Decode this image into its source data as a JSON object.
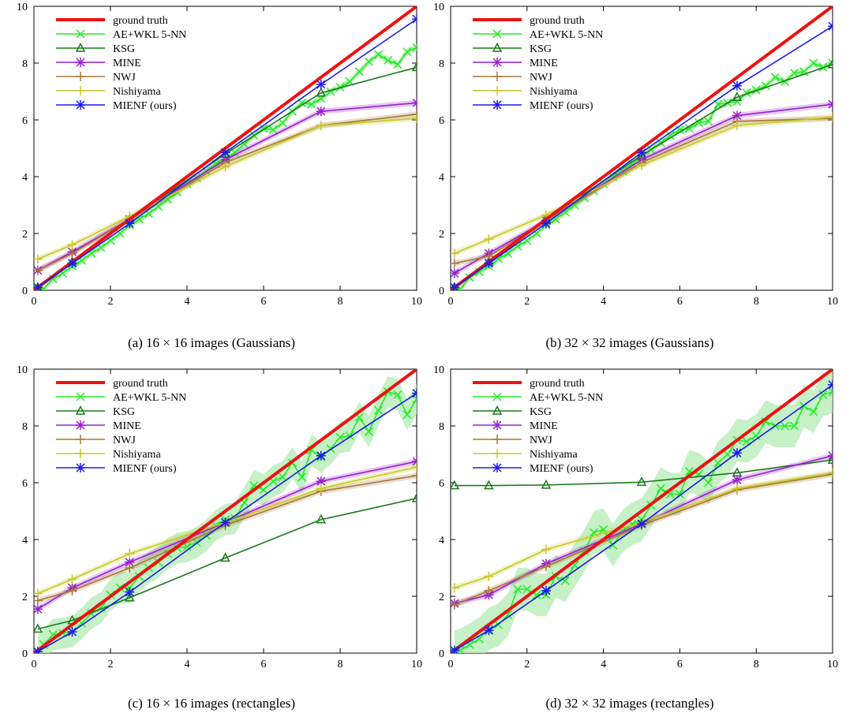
{
  "figure": {
    "legend_entries": [
      {
        "key": "gt",
        "label": "ground truth",
        "color": "#ee1111",
        "marker": "none"
      },
      {
        "key": "ae",
        "label": "AE+WKL 5-NN",
        "color": "#22ee22",
        "marker": "x"
      },
      {
        "key": "ksg",
        "label": "KSG",
        "color": "#1b7a1b",
        "marker": "triangle"
      },
      {
        "key": "mine",
        "label": "MINE",
        "color": "#9a1fd0",
        "marker": "star"
      },
      {
        "key": "nwj",
        "label": "NWJ",
        "color": "#a8783a",
        "marker": "plus"
      },
      {
        "key": "nishi",
        "label": "Nishiyama",
        "color": "#c8c826",
        "marker": "plus"
      },
      {
        "key": "mienf",
        "label": "MIENF (ours)",
        "color": "#1b1bee",
        "marker": "star"
      }
    ],
    "band_color": "#b3ebb3"
  },
  "chart_data": [
    {
      "type": "line",
      "title": "",
      "caption": "(a) 16 × 16 images (Gaussians)",
      "xlim": [
        0,
        10
      ],
      "ylim": [
        0,
        10
      ],
      "xticks": [
        0,
        2,
        4,
        6,
        8,
        10
      ],
      "yticks": [
        0,
        2,
        4,
        6,
        8,
        10
      ],
      "grid": false,
      "legend_position": "top-left",
      "series": [
        {
          "key": "gt",
          "name": "ground truth",
          "x": [
            0,
            10
          ],
          "y": [
            0,
            10
          ]
        },
        {
          "key": "ae",
          "name": "AE+WKL 5-NN",
          "x": [
            0.1,
            0.25,
            0.5,
            0.75,
            1,
            1.25,
            1.5,
            1.75,
            2,
            2.25,
            2.5,
            2.75,
            3,
            3.25,
            3.5,
            3.75,
            4,
            4.25,
            4.5,
            4.75,
            5,
            5.25,
            5.5,
            5.75,
            6,
            6.25,
            6.5,
            6.75,
            7,
            7.25,
            7.5,
            7.75,
            8,
            8.25,
            8.5,
            8.75,
            9,
            9.25,
            9.5,
            9.75,
            10
          ],
          "y": [
            0.05,
            0.05,
            0.4,
            0.6,
            0.85,
            1.05,
            1.3,
            1.5,
            1.75,
            2.0,
            2.3,
            2.5,
            2.7,
            2.95,
            3.2,
            3.45,
            3.75,
            3.95,
            4.2,
            4.45,
            4.65,
            4.85,
            5.15,
            5.45,
            5.7,
            5.65,
            5.9,
            6.3,
            6.6,
            6.55,
            6.75,
            7.0,
            7.15,
            7.35,
            7.7,
            8.05,
            8.3,
            8.1,
            7.95,
            8.4,
            8.55
          ],
          "band": 0.12
        },
        {
          "key": "ksg",
          "name": "KSG",
          "x": [
            0.1,
            1,
            2.5,
            5,
            7.5,
            10
          ],
          "y": [
            0.1,
            1.0,
            2.5,
            4.8,
            6.95,
            7.85
          ]
        },
        {
          "key": "mine",
          "name": "MINE",
          "x": [
            0.1,
            1,
            2.5,
            5,
            7.5,
            10
          ],
          "y": [
            0.7,
            1.35,
            2.5,
            4.6,
            6.3,
            6.6
          ],
          "band": 0.1
        },
        {
          "key": "nwj",
          "name": "NWJ",
          "x": [
            0.1,
            1,
            2.5,
            5,
            7.5,
            10
          ],
          "y": [
            0.7,
            1.3,
            2.5,
            4.5,
            5.8,
            6.2
          ],
          "band": 0.1
        },
        {
          "key": "nishi",
          "name": "Nishiyama",
          "x": [
            0.1,
            1,
            2.5,
            5,
            7.5,
            10
          ],
          "y": [
            1.1,
            1.6,
            2.6,
            4.35,
            5.8,
            6.05
          ],
          "band": 0.1
        },
        {
          "key": "mienf",
          "name": "MIENF (ours)",
          "x": [
            0.1,
            1,
            2.5,
            5,
            7.5,
            10
          ],
          "y": [
            0.1,
            0.95,
            2.35,
            4.85,
            7.25,
            9.55
          ]
        }
      ]
    },
    {
      "type": "line",
      "title": "",
      "caption": "(b) 32 × 32 images (Gaussians)",
      "xlim": [
        0,
        10
      ],
      "ylim": [
        0,
        10
      ],
      "xticks": [
        0,
        2,
        4,
        6,
        8,
        10
      ],
      "yticks": [
        0,
        2,
        4,
        6,
        8,
        10
      ],
      "grid": false,
      "legend_position": "top-left",
      "series": [
        {
          "key": "gt",
          "name": "ground truth",
          "x": [
            0,
            10
          ],
          "y": [
            0,
            10
          ]
        },
        {
          "key": "ae",
          "name": "AE+WKL 5-NN",
          "x": [
            0.1,
            0.25,
            0.5,
            0.75,
            1,
            1.25,
            1.5,
            1.75,
            2,
            2.25,
            2.5,
            2.75,
            3,
            3.25,
            3.5,
            3.75,
            4,
            4.25,
            4.5,
            4.75,
            5,
            5.25,
            5.5,
            5.75,
            6,
            6.25,
            6.5,
            6.75,
            7,
            7.25,
            7.5,
            7.75,
            8,
            8.25,
            8.5,
            8.75,
            9,
            9.25,
            9.5,
            9.75,
            10
          ],
          "y": [
            0.05,
            0.05,
            0.45,
            0.65,
            0.85,
            1.1,
            1.3,
            1.55,
            1.75,
            2.0,
            2.3,
            2.5,
            2.75,
            3.0,
            3.25,
            3.5,
            3.75,
            4.0,
            4.2,
            4.45,
            4.7,
            4.95,
            5.2,
            5.45,
            5.65,
            5.7,
            5.9,
            5.95,
            6.55,
            6.6,
            6.65,
            6.95,
            7.05,
            7.2,
            7.5,
            7.35,
            7.65,
            7.7,
            8.0,
            7.85,
            8.0
          ],
          "band": 0.12
        },
        {
          "key": "ksg",
          "name": "KSG",
          "x": [
            0.1,
            1,
            2.5,
            5,
            7.5,
            10
          ],
          "y": [
            0.1,
            1.0,
            2.5,
            4.75,
            6.8,
            7.95
          ]
        },
        {
          "key": "mine",
          "name": "MINE",
          "x": [
            0.1,
            1,
            2.5,
            5,
            7.5,
            10
          ],
          "y": [
            0.6,
            1.3,
            2.45,
            4.6,
            6.15,
            6.55
          ],
          "band": 0.1
        },
        {
          "key": "nwj",
          "name": "NWJ",
          "x": [
            0.1,
            1,
            2.5,
            5,
            7.5,
            10
          ],
          "y": [
            0.95,
            1.2,
            2.45,
            4.5,
            5.95,
            6.05
          ],
          "band": 0.1
        },
        {
          "key": "nishi",
          "name": "Nishiyama",
          "x": [
            0.1,
            1,
            2.5,
            5,
            7.5,
            10
          ],
          "y": [
            1.3,
            1.8,
            2.65,
            4.4,
            5.8,
            6.1
          ],
          "band": 0.1
        },
        {
          "key": "mienf",
          "name": "MIENF (ours)",
          "x": [
            0.1,
            1,
            2.5,
            5,
            7.5,
            10
          ],
          "y": [
            0.1,
            0.95,
            2.35,
            4.85,
            7.2,
            9.3
          ]
        }
      ]
    },
    {
      "type": "line",
      "title": "",
      "caption": "(c) 16 × 16 images (rectangles)",
      "xlim": [
        0,
        10
      ],
      "ylim": [
        0,
        10
      ],
      "xticks": [
        0,
        2,
        4,
        6,
        8,
        10
      ],
      "yticks": [
        0,
        2,
        4,
        6,
        8,
        10
      ],
      "grid": false,
      "legend_position": "top-left",
      "series": [
        {
          "key": "gt",
          "name": "ground truth",
          "x": [
            0,
            10
          ],
          "y": [
            0,
            10
          ]
        },
        {
          "key": "ae",
          "name": "AE+WKL 5-NN",
          "x": [
            0.1,
            0.25,
            0.5,
            0.75,
            1,
            1.25,
            1.5,
            1.75,
            2,
            2.25,
            2.5,
            2.75,
            3,
            3.25,
            3.5,
            3.75,
            4,
            4.25,
            4.5,
            4.75,
            5,
            5.25,
            5.5,
            5.75,
            6,
            6.25,
            6.5,
            6.75,
            7,
            7.25,
            7.5,
            7.75,
            8,
            8.25,
            8.5,
            8.75,
            9,
            9.25,
            9.5,
            9.75,
            10
          ],
          "y": [
            0.05,
            0.3,
            0.65,
            0.7,
            0.75,
            1.05,
            1.4,
            1.6,
            2.05,
            2.3,
            2.3,
            2.7,
            3.0,
            3.2,
            3.5,
            3.7,
            3.75,
            3.9,
            4.15,
            4.5,
            4.7,
            4.75,
            5.3,
            5.9,
            5.75,
            6.05,
            6.2,
            6.7,
            6.2,
            7.15,
            6.9,
            7.2,
            7.6,
            7.65,
            8.3,
            7.8,
            8.55,
            9.2,
            9.1,
            8.4,
            8.95
          ],
          "band": 0.55
        },
        {
          "key": "ksg",
          "name": "KSG",
          "x": [
            0.1,
            1,
            2.5,
            5,
            7.5,
            10
          ],
          "y": [
            0.85,
            1.15,
            1.95,
            3.35,
            4.7,
            5.45
          ]
        },
        {
          "key": "mine",
          "name": "MINE",
          "x": [
            0.1,
            1,
            2.5,
            5,
            7.5,
            10
          ],
          "y": [
            1.55,
            2.3,
            3.2,
            4.6,
            6.05,
            6.75
          ],
          "band": 0.1
        },
        {
          "key": "nwj",
          "name": "NWJ",
          "x": [
            0.1,
            1,
            2.5,
            5,
            7.5,
            10
          ],
          "y": [
            1.85,
            2.2,
            3.0,
            4.5,
            5.7,
            6.25
          ],
          "band": 0.1
        },
        {
          "key": "nishi",
          "name": "Nishiyama",
          "x": [
            0.1,
            1,
            2.5,
            5,
            7.5,
            10
          ],
          "y": [
            2.1,
            2.6,
            3.5,
            4.6,
            5.8,
            6.55
          ],
          "band": 0.1
        },
        {
          "key": "mienf",
          "name": "MIENF (ours)",
          "x": [
            0.1,
            1,
            2.5,
            5,
            7.5,
            10
          ],
          "y": [
            0.05,
            0.75,
            2.15,
            4.6,
            6.95,
            9.15
          ]
        }
      ]
    },
    {
      "type": "line",
      "title": "",
      "caption": "(d) 32 × 32 images (rectangles)",
      "xlim": [
        0,
        10
      ],
      "ylim": [
        0,
        10
      ],
      "xticks": [
        0,
        2,
        4,
        6,
        8,
        10
      ],
      "yticks": [
        0,
        2,
        4,
        6,
        8,
        10
      ],
      "grid": false,
      "legend_position": "top-left",
      "series": [
        {
          "key": "gt",
          "name": "ground truth",
          "x": [
            0,
            10
          ],
          "y": [
            0,
            10
          ]
        },
        {
          "key": "ae",
          "name": "AE+WKL 5-NN",
          "x": [
            0.1,
            0.25,
            0.5,
            0.75,
            1,
            1.25,
            1.5,
            1.75,
            2,
            2.25,
            2.5,
            2.75,
            3,
            3.25,
            3.5,
            3.75,
            4,
            4.25,
            4.5,
            4.75,
            5,
            5.25,
            5.5,
            5.75,
            6,
            6.25,
            6.5,
            6.75,
            7,
            7.25,
            7.5,
            7.75,
            8,
            8.25,
            8.5,
            8.75,
            9,
            9.25,
            9.5,
            9.75,
            10
          ],
          "y": [
            0.05,
            0.1,
            0.3,
            0.5,
            0.85,
            1.0,
            1.35,
            2.25,
            2.25,
            2.05,
            2.05,
            2.7,
            2.55,
            3.1,
            3.6,
            4.25,
            4.35,
            3.8,
            4.3,
            4.55,
            4.7,
            5.2,
            5.8,
            5.6,
            5.6,
            6.4,
            6.3,
            6.0,
            6.7,
            7.0,
            7.5,
            7.45,
            7.65,
            8.15,
            8.0,
            8.0,
            8.0,
            8.7,
            8.5,
            9.1,
            9.2
          ],
          "band": 0.75
        },
        {
          "key": "ksg",
          "name": "KSG",
          "x": [
            0.1,
            1,
            2.5,
            5,
            7.5,
            10
          ],
          "y": [
            5.9,
            5.9,
            5.92,
            6.02,
            6.35,
            6.8
          ]
        },
        {
          "key": "mine",
          "name": "MINE",
          "x": [
            0.1,
            1,
            2.5,
            5,
            7.5,
            10
          ],
          "y": [
            1.75,
            2.05,
            3.15,
            4.55,
            6.1,
            6.95
          ],
          "band": 0.1
        },
        {
          "key": "nwj",
          "name": "NWJ",
          "x": [
            0.1,
            1,
            2.5,
            5,
            7.5,
            10
          ],
          "y": [
            1.7,
            2.2,
            3.05,
            4.5,
            5.75,
            6.3
          ],
          "band": 0.1
        },
        {
          "key": "nishi",
          "name": "Nishiyama",
          "x": [
            0.1,
            1,
            2.5,
            5,
            7.5,
            10
          ],
          "y": [
            2.3,
            2.7,
            3.65,
            4.6,
            5.8,
            6.35
          ],
          "band": 0.1
        },
        {
          "key": "mienf",
          "name": "MIENF (ours)",
          "x": [
            0.1,
            1,
            2.5,
            5,
            7.5,
            10
          ],
          "y": [
            0.1,
            0.8,
            2.2,
            4.55,
            7.05,
            9.45
          ]
        }
      ]
    }
  ]
}
